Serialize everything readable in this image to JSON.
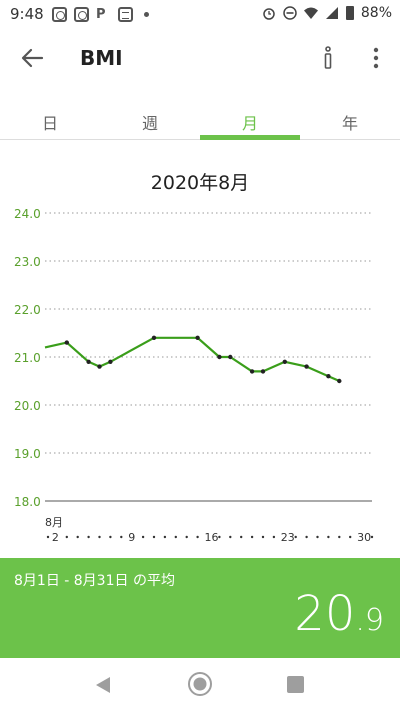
{
  "status_bar": {
    "time": "9:48",
    "left_p": "P",
    "battery": "88%"
  },
  "app_bar": {
    "title": "BMI"
  },
  "tabs": [
    {
      "label": "日",
      "active": false
    },
    {
      "label": "週",
      "active": false
    },
    {
      "label": "月",
      "active": true
    },
    {
      "label": "年",
      "active": false
    }
  ],
  "chart_data": {
    "type": "line",
    "title": "2020年8月",
    "ylim": [
      18.0,
      24.0
    ],
    "yticks": [
      "24.0",
      "23.0",
      "22.0",
      "21.0",
      "20.0",
      "19.0",
      "18.0"
    ],
    "xlim": [
      1,
      31
    ],
    "month_label": "8月",
    "xtick_labels": [
      {
        "day": 2,
        "label": "2"
      },
      {
        "day": 9,
        "label": "9"
      },
      {
        "day": 16,
        "label": "16"
      },
      {
        "day": 23,
        "label": "23"
      },
      {
        "day": 30,
        "label": "30"
      }
    ],
    "grid": true,
    "series": [
      {
        "x": [
          1,
          3,
          5,
          6,
          7,
          11,
          15,
          17,
          18,
          20,
          21,
          23,
          25,
          27,
          28
        ],
        "values": [
          21.2,
          21.3,
          20.9,
          20.8,
          20.9,
          21.4,
          21.4,
          21.0,
          21.0,
          20.7,
          20.7,
          20.9,
          20.8,
          20.6,
          20.5
        ],
        "color": "#3a9e1a"
      }
    ]
  },
  "summary": {
    "label": "8月1日 - 8月31日 の平均",
    "value_int": "20",
    "value_dec": ".9"
  },
  "colors": {
    "accent": "#6cc24a",
    "line": "#3a9e1a",
    "axis_text": "#5aa02c"
  }
}
